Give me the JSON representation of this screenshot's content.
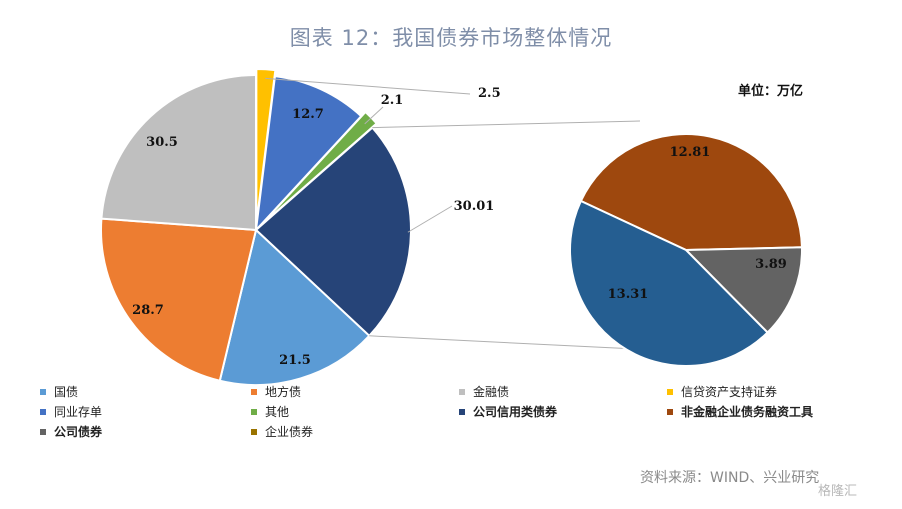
{
  "title": "图表 12：我国债券市场整体情况",
  "unit": "单位：万亿",
  "source": "资料来源：WIND、兴业研究",
  "watermark": "格隆汇",
  "colors": {
    "guozhai": "#5b9bd5",
    "difangzhai": "#ed7d31",
    "jinrongzhai": "#bfbfbf",
    "xindai": "#ffc000",
    "tongye": "#4472c4",
    "qita": "#70ad47",
    "gongsi_xinyong": "#264478",
    "feijinrong": "#9e480e",
    "gongsizhai": "#636363",
    "qiyezhai": "#997300",
    "subpie_blue": "#255e91"
  },
  "chart_data": [
    {
      "type": "pie",
      "name": "main",
      "slices": [
        {
          "label": "信贷资产支持证券",
          "value": 2.5,
          "color": "#ffc000"
        },
        {
          "label": "同业存单",
          "value": 12.7,
          "color": "#4472c4"
        },
        {
          "label": "其他",
          "value": 2.1,
          "color": "#70ad47"
        },
        {
          "label": "公司信用类债券",
          "value": 30.01,
          "color": "#264478"
        },
        {
          "label": "国债",
          "value": 21.5,
          "color": "#5b9bd5"
        },
        {
          "label": "地方债",
          "value": 28.7,
          "color": "#ed7d31"
        },
        {
          "label": "金融债",
          "value": 30.5,
          "color": "#bfbfbf"
        }
      ]
    },
    {
      "type": "pie",
      "name": "breakdown",
      "slices": [
        {
          "label": "非金融企业债务融资工具",
          "value": 12.81,
          "color": "#9e480e"
        },
        {
          "label": "公司债券",
          "value": 3.89,
          "color": "#636363"
        },
        {
          "label": "企业债券",
          "value": 13.31,
          "color": "#255e91"
        }
      ]
    }
  ],
  "legend": [
    {
      "label": "国债",
      "color": "#5b9bd5",
      "bold": false
    },
    {
      "label": "地方债",
      "color": "#ed7d31",
      "bold": false
    },
    {
      "label": "金融债",
      "color": "#bfbfbf",
      "bold": false
    },
    {
      "label": "信贷资产支持证券",
      "color": "#ffc000",
      "bold": false
    },
    {
      "label": "同业存单",
      "color": "#4472c4",
      "bold": false
    },
    {
      "label": "其他",
      "color": "#70ad47",
      "bold": false
    },
    {
      "label": "公司信用类债券",
      "color": "#264478",
      "bold": true
    },
    {
      "label": "非金融企业债务融资工具",
      "color": "#9e480e",
      "bold": true
    },
    {
      "label": "公司债券",
      "color": "#636363",
      "bold": true
    },
    {
      "label": "企业债券",
      "color": "#997300",
      "bold": false
    }
  ]
}
